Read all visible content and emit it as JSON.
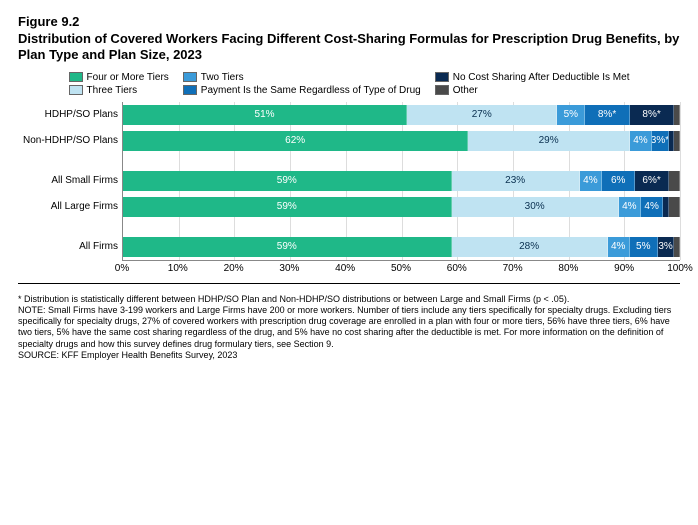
{
  "figure_label": "Figure 9.2",
  "title": "Distribution of Covered Workers Facing Different Cost-Sharing Formulas for Prescription Drug Benefits, by Plan Type and Plan Size, 2023",
  "legend": [
    {
      "label": "Four or More Tiers",
      "color": "#1fb888"
    },
    {
      "label": "Three Tiers",
      "color": "#bfe3f2"
    },
    {
      "label": "Two Tiers",
      "color": "#3b9bd9"
    },
    {
      "label": "Payment Is the Same Regardless of Type of Drug",
      "color": "#0f6fb8"
    },
    {
      "label": "No Cost Sharing After Deductible Is Met",
      "color": "#0a2a52"
    },
    {
      "label": "Other",
      "color": "#4a4a4a"
    }
  ],
  "series_colors": [
    "#1fb888",
    "#bfe3f2",
    "#3b9bd9",
    "#0f6fb8",
    "#0a2a52",
    "#4a4a4a"
  ],
  "series_text_light": [
    false,
    true,
    false,
    false,
    false,
    false
  ],
  "groups": [
    {
      "rows": [
        {
          "label": "HDHP/SO Plans",
          "values": [
            51,
            27,
            5,
            8,
            8,
            1
          ],
          "display": [
            "51%",
            "27%",
            "5%",
            "8%*",
            "8%*",
            ""
          ]
        },
        {
          "label": "Non-HDHP/SO Plans",
          "values": [
            62,
            29,
            4,
            3,
            1,
            1
          ],
          "display": [
            "62%",
            "29%",
            "4%",
            "3%*",
            "",
            ""
          ]
        }
      ]
    },
    {
      "rows": [
        {
          "label": "All Small Firms",
          "values": [
            59,
            23,
            4,
            6,
            6,
            2
          ],
          "display": [
            "59%",
            "23%",
            "4%",
            "6%",
            "6%*",
            ""
          ]
        },
        {
          "label": "All Large Firms",
          "values": [
            59,
            30,
            4,
            4,
            1,
            2
          ],
          "display": [
            "59%",
            "30%",
            "4%",
            "4%",
            "",
            ""
          ]
        }
      ]
    },
    {
      "rows": [
        {
          "label": "All Firms",
          "values": [
            59,
            28,
            4,
            5,
            3,
            1
          ],
          "display": [
            "59%",
            "28%",
            "4%",
            "5%",
            "3%",
            ""
          ]
        }
      ]
    }
  ],
  "xaxis": {
    "min": 0,
    "max": 100,
    "step": 10
  },
  "footnote_lines": [
    "* Distribution is statistically different between HDHP/SO Plan and Non-HDHP/SO distributions or between Large and Small Firms (p < .05).",
    "NOTE: Small Firms have 3-199 workers and Large Firms have 200 or more workers. Number of tiers include any tiers specifically for specialty drugs. Excluding tiers specifically for specialty drugs, 27% of covered workers with prescription drug coverage are enrolled in a plan with four or more tiers, 56% have three tiers, 6% have two tiers, 5% have the same cost sharing regardless of the drug, and 5% have no cost sharing after the deductible is met. For more information on the definition of specialty drugs and how this survey defines drug formulary tiers, see Section 9.",
    "SOURCE: KFF Employer Health Benefits Survey, 2023"
  ]
}
